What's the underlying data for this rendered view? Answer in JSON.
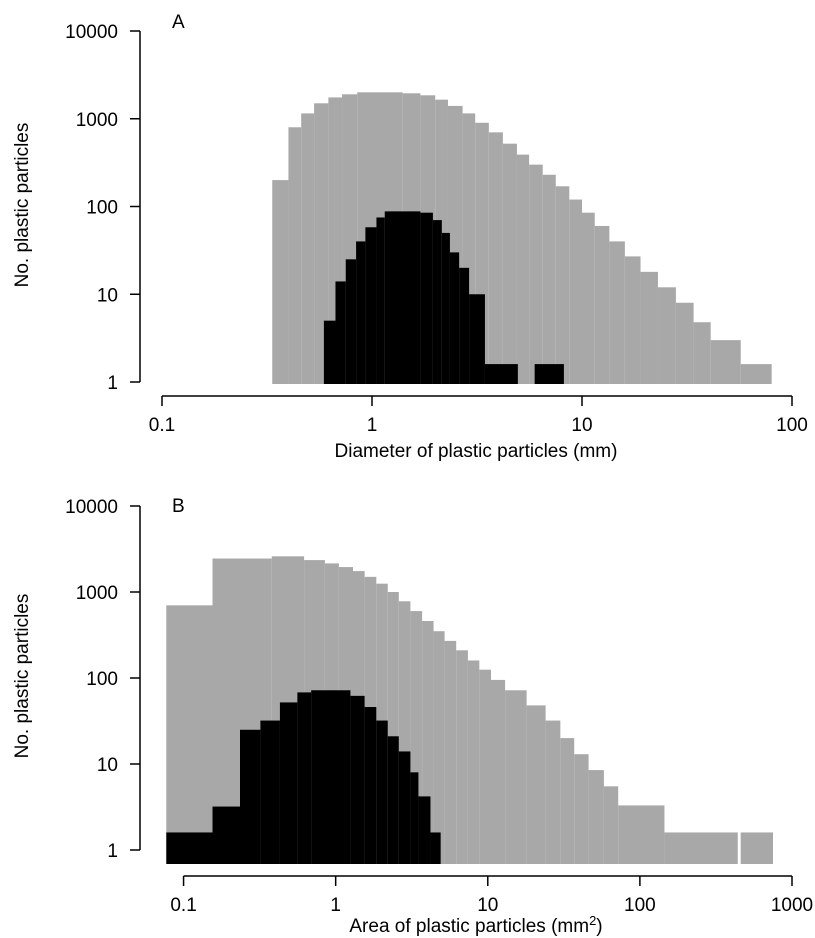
{
  "chart_data": [
    {
      "panel": "A",
      "type": "histogram",
      "x_scale": "log",
      "y_scale": "log",
      "xlim": [
        0.1,
        100
      ],
      "ylim": [
        1,
        10000
      ],
      "xlabel": "Diameter of plastic particles (mm)",
      "ylabel": "No. plastic particles",
      "xticks": [
        {
          "value": 0.1,
          "label": "0.1"
        },
        {
          "value": 1,
          "label": "1"
        },
        {
          "value": 10,
          "label": "10"
        },
        {
          "value": 100,
          "label": "100"
        }
      ],
      "yticks": [
        {
          "value": 1,
          "label": "1"
        },
        {
          "value": 10,
          "label": "10"
        },
        {
          "value": 100,
          "label": "100"
        },
        {
          "value": 1000,
          "label": "1000"
        },
        {
          "value": 10000,
          "label": "10000"
        }
      ],
      "series": [
        {
          "color": "#a8a8a8",
          "bins": [
            {
              "x0": 0.335,
              "x1": 0.4,
              "y": 200
            },
            {
              "x0": 0.4,
              "x1": 0.46,
              "y": 800
            },
            {
              "x0": 0.46,
              "x1": 0.53,
              "y": 1150
            },
            {
              "x0": 0.53,
              "x1": 0.62,
              "y": 1500
            },
            {
              "x0": 0.62,
              "x1": 0.72,
              "y": 1750
            },
            {
              "x0": 0.72,
              "x1": 0.85,
              "y": 1900
            },
            {
              "x0": 0.85,
              "x1": 1.4,
              "y": 2000
            },
            {
              "x0": 1.4,
              "x1": 1.7,
              "y": 1950
            },
            {
              "x0": 1.7,
              "x1": 2.0,
              "y": 1850
            },
            {
              "x0": 2.0,
              "x1": 2.3,
              "y": 1650
            },
            {
              "x0": 2.3,
              "x1": 2.7,
              "y": 1400
            },
            {
              "x0": 2.7,
              "x1": 3.1,
              "y": 1150
            },
            {
              "x0": 3.1,
              "x1": 3.6,
              "y": 900
            },
            {
              "x0": 3.6,
              "x1": 4.2,
              "y": 700
            },
            {
              "x0": 4.2,
              "x1": 4.9,
              "y": 520
            },
            {
              "x0": 4.9,
              "x1": 5.6,
              "y": 390
            },
            {
              "x0": 5.6,
              "x1": 6.5,
              "y": 300
            },
            {
              "x0": 6.5,
              "x1": 7.5,
              "y": 230
            },
            {
              "x0": 7.5,
              "x1": 8.7,
              "y": 170
            },
            {
              "x0": 8.7,
              "x1": 10.0,
              "y": 120
            },
            {
              "x0": 10.0,
              "x1": 11.5,
              "y": 85
            },
            {
              "x0": 11.5,
              "x1": 13.5,
              "y": 60
            },
            {
              "x0": 13.5,
              "x1": 16,
              "y": 40
            },
            {
              "x0": 16,
              "x1": 19,
              "y": 27
            },
            {
              "x0": 19,
              "x1": 23,
              "y": 18
            },
            {
              "x0": 23,
              "x1": 28,
              "y": 12
            },
            {
              "x0": 28,
              "x1": 34,
              "y": 8
            },
            {
              "x0": 34,
              "x1": 41,
              "y": 4.8
            },
            {
              "x0": 41,
              "x1": 57,
              "y": 3.0
            },
            {
              "x0": 57,
              "x1": 80,
              "y": 1.6
            }
          ]
        },
        {
          "color": "#000000",
          "bins": [
            {
              "x0": 0.59,
              "x1": 0.67,
              "y": 5
            },
            {
              "x0": 0.67,
              "x1": 0.75,
              "y": 14
            },
            {
              "x0": 0.75,
              "x1": 0.84,
              "y": 25
            },
            {
              "x0": 0.84,
              "x1": 0.93,
              "y": 40
            },
            {
              "x0": 0.93,
              "x1": 1.05,
              "y": 58
            },
            {
              "x0": 1.05,
              "x1": 1.15,
              "y": 75
            },
            {
              "x0": 1.15,
              "x1": 1.7,
              "y": 88
            },
            {
              "x0": 1.7,
              "x1": 1.95,
              "y": 85
            },
            {
              "x0": 1.95,
              "x1": 2.15,
              "y": 70
            },
            {
              "x0": 2.15,
              "x1": 2.35,
              "y": 50
            },
            {
              "x0": 2.35,
              "x1": 2.6,
              "y": 30
            },
            {
              "x0": 2.6,
              "x1": 2.9,
              "y": 20
            },
            {
              "x0": 2.9,
              "x1": 3.45,
              "y": 10
            },
            {
              "x0": 3.45,
              "x1": 4.95,
              "y": 1.6
            },
            {
              "x0": 5.95,
              "x1": 8.2,
              "y": 1.6
            }
          ]
        }
      ]
    },
    {
      "panel": "B",
      "type": "histogram",
      "x_scale": "log",
      "y_scale": "log",
      "xlim": [
        0.07,
        1000
      ],
      "ylim": [
        1,
        10000
      ],
      "xlabel": "Area of plastic particles (mm",
      "xlabel_superscript": "2",
      "xlabel_suffix": ")",
      "ylabel": "No. plastic particles",
      "xticks": [
        {
          "value": 0.1,
          "label": "0.1"
        },
        {
          "value": 1,
          "label": "1"
        },
        {
          "value": 10,
          "label": "10"
        },
        {
          "value": 100,
          "label": "100"
        },
        {
          "value": 1000,
          "label": "1000"
        }
      ],
      "yticks": [
        {
          "value": 1,
          "label": "1"
        },
        {
          "value": 10,
          "label": "10"
        },
        {
          "value": 100,
          "label": "100"
        },
        {
          "value": 1000,
          "label": "1000"
        },
        {
          "value": 10000,
          "label": "10000"
        }
      ],
      "series": [
        {
          "color": "#a8a8a8",
          "bins": [
            {
              "x0": 0.077,
              "x1": 0.155,
              "y": 700
            },
            {
              "x0": 0.155,
              "x1": 0.38,
              "y": 2450
            },
            {
              "x0": 0.38,
              "x1": 0.62,
              "y": 2600
            },
            {
              "x0": 0.62,
              "x1": 0.85,
              "y": 2350
            },
            {
              "x0": 0.85,
              "x1": 1.05,
              "y": 2150
            },
            {
              "x0": 1.05,
              "x1": 1.3,
              "y": 1950
            },
            {
              "x0": 1.3,
              "x1": 1.55,
              "y": 1750
            },
            {
              "x0": 1.55,
              "x1": 1.85,
              "y": 1500
            },
            {
              "x0": 1.85,
              "x1": 2.2,
              "y": 1250
            },
            {
              "x0": 2.2,
              "x1": 2.6,
              "y": 1000
            },
            {
              "x0": 2.6,
              "x1": 3.1,
              "y": 780
            },
            {
              "x0": 3.1,
              "x1": 3.7,
              "y": 600
            },
            {
              "x0": 3.7,
              "x1": 4.4,
              "y": 460
            },
            {
              "x0": 4.4,
              "x1": 5.2,
              "y": 350
            },
            {
              "x0": 5.2,
              "x1": 6.2,
              "y": 270
            },
            {
              "x0": 6.2,
              "x1": 7.4,
              "y": 210
            },
            {
              "x0": 7.4,
              "x1": 8.8,
              "y": 160
            },
            {
              "x0": 8.8,
              "x1": 10.5,
              "y": 125
            },
            {
              "x0": 10.5,
              "x1": 13,
              "y": 95
            },
            {
              "x0": 13,
              "x1": 18,
              "y": 72
            },
            {
              "x0": 18,
              "x1": 24,
              "y": 48
            },
            {
              "x0": 24,
              "x1": 30,
              "y": 32
            },
            {
              "x0": 30,
              "x1": 37,
              "y": 20
            },
            {
              "x0": 37,
              "x1": 46,
              "y": 13
            },
            {
              "x0": 46,
              "x1": 58,
              "y": 8.5
            },
            {
              "x0": 58,
              "x1": 72,
              "y": 5.5
            },
            {
              "x0": 72,
              "x1": 145,
              "y": 3.3
            },
            {
              "x0": 145,
              "x1": 440,
              "y": 1.6
            },
            {
              "x0": 460,
              "x1": 750,
              "y": 1.6
            }
          ]
        },
        {
          "color": "#000000",
          "bins": [
            {
              "x0": 0.077,
              "x1": 0.155,
              "y": 1.6
            },
            {
              "x0": 0.155,
              "x1": 0.235,
              "y": 3.2
            },
            {
              "x0": 0.235,
              "x1": 0.32,
              "y": 25
            },
            {
              "x0": 0.32,
              "x1": 0.43,
              "y": 32
            },
            {
              "x0": 0.43,
              "x1": 0.56,
              "y": 52
            },
            {
              "x0": 0.56,
              "x1": 0.69,
              "y": 68
            },
            {
              "x0": 0.69,
              "x1": 1.25,
              "y": 72
            },
            {
              "x0": 1.25,
              "x1": 1.55,
              "y": 62
            },
            {
              "x0": 1.55,
              "x1": 1.85,
              "y": 46
            },
            {
              "x0": 1.85,
              "x1": 2.2,
              "y": 32
            },
            {
              "x0": 2.2,
              "x1": 2.6,
              "y": 21
            },
            {
              "x0": 2.6,
              "x1": 3.1,
              "y": 14
            },
            {
              "x0": 3.1,
              "x1": 3.5,
              "y": 8
            },
            {
              "x0": 3.5,
              "x1": 4.2,
              "y": 4.2
            },
            {
              "x0": 4.2,
              "x1": 4.9,
              "y": 1.6
            }
          ]
        }
      ]
    }
  ]
}
